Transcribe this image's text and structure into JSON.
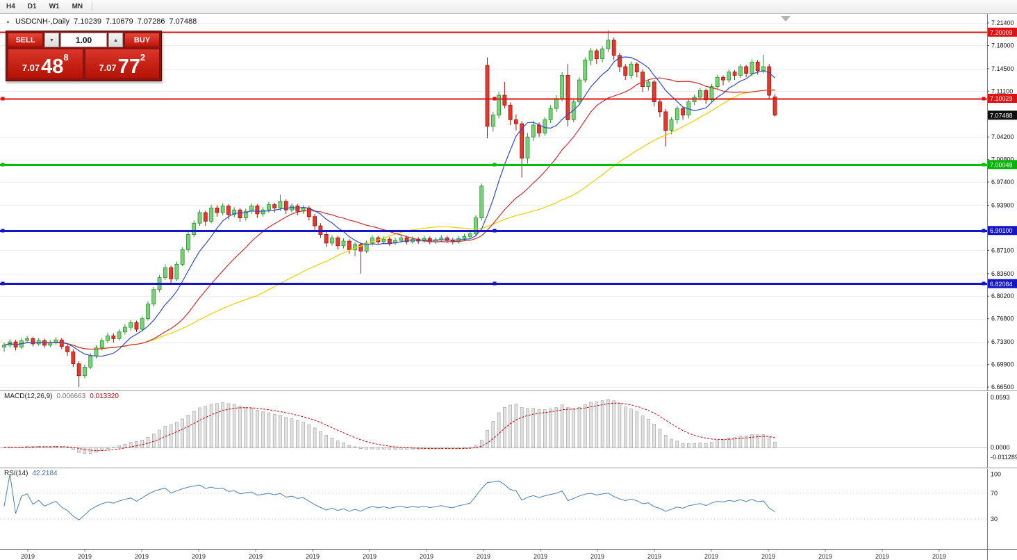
{
  "toolbar": {
    "timeframes": [
      {
        "label": "H4"
      },
      {
        "label": "D1"
      },
      {
        "label": "W1"
      },
      {
        "label": "MN"
      }
    ]
  },
  "header": {
    "symbol": "USDCNH-,Daily",
    "open": "7.10239",
    "high": "7.10679",
    "low": "7.07286",
    "close": "7.07488"
  },
  "trade_panel": {
    "sell_label": "SELL",
    "buy_label": "BUY",
    "volume": "1.00",
    "sell_price": {
      "base": "7.07",
      "big": "48",
      "sup": "8"
    },
    "buy_price": {
      "base": "7.07",
      "big": "77",
      "sup": "2"
    }
  },
  "indicators": {
    "macd": {
      "label": "MACD(12,26,9)",
      "value1": "0.006663",
      "value2": "0.013320",
      "axis_labels": [
        "0.0593",
        "0.0000",
        "-0.011289"
      ]
    },
    "rsi": {
      "label": "RSI(14)",
      "value": "42.2184",
      "axis_labels": [
        {
          "text": "100",
          "value": 100
        },
        {
          "text": "70",
          "value": 70
        },
        {
          "text": "30",
          "value": 30
        }
      ]
    }
  },
  "price_axis": {
    "labels": [
      "7.21400",
      "7.18000",
      "7.14500",
      "7.11100",
      "7.04200",
      "7.00800",
      "6.97400",
      "6.93900",
      "6.87100",
      "6.83600",
      "6.80200",
      "6.76800",
      "6.73300",
      "6.69900",
      "6.66500"
    ],
    "badges": [
      {
        "text": "7.20009",
        "color": "#e01010"
      },
      {
        "text": "7.10029",
        "color": "#e01010"
      },
      {
        "text": "7.07488",
        "color": "#101010"
      },
      {
        "text": "7.00048",
        "color": "#00b400"
      },
      {
        "text": "6.90100",
        "color": "#1414c8"
      },
      {
        "text": "6.82084",
        "color": "#1414c8"
      }
    ]
  },
  "hlines": [
    {
      "price": 7.20009,
      "color": "#e01010",
      "width": 2,
      "handles": false
    },
    {
      "price": 7.10029,
      "color": "#e01010",
      "width": 2,
      "handles": true
    },
    {
      "price": 7.00048,
      "color": "#00c000",
      "width": 3,
      "handles": true
    },
    {
      "price": 6.901,
      "color": "#1414c8",
      "width": 3,
      "handles": true
    },
    {
      "price": 6.82084,
      "color": "#1414c8",
      "width": 3,
      "handles": true
    }
  ],
  "time_axis": {
    "labels": [
      "2019",
      "2019",
      "2019",
      "2019",
      "2019",
      "2019",
      "2019",
      "2019",
      "2019",
      "2019",
      "2019",
      "2019",
      "2019",
      "2019",
      "2019",
      "2019",
      "2019"
    ]
  },
  "colors": {
    "bull": "#7ed07e",
    "bull_border": "#259325",
    "bear": "#e6392d",
    "bear_border": "#a01208",
    "ma_fast": "#2f4cc4",
    "ma_mid": "#cc2f2f",
    "ma_slow": "#e8d40a",
    "grid": "#ededed",
    "macd_hist_fill": "#e2e2e2",
    "macd_hist_stroke": "#9a9a9a",
    "macd_signal": "#cc0000",
    "rsi_line": "#4a7fb5",
    "axis_text": "#111111"
  },
  "chart_data": {
    "type": "candlestick",
    "symbol": "USDCNH",
    "timeframe": "Daily",
    "title": "USDCNH-,Daily",
    "price_range": {
      "top": 7.214,
      "bottom": 6.665
    },
    "overlays": {
      "sma_fast_period": 8,
      "sma_mid_period": 20,
      "sma_slow_period": 45
    },
    "macd_params": {
      "fast": 12,
      "slow": 26,
      "signal": 9
    },
    "rsi_params": {
      "period": 14
    },
    "candles": [
      [
        6.725,
        6.732,
        6.718,
        6.728
      ],
      [
        6.728,
        6.737,
        6.724,
        6.733
      ],
      [
        6.733,
        6.736,
        6.72,
        6.725
      ],
      [
        6.725,
        6.739,
        6.722,
        6.735
      ],
      [
        6.735,
        6.742,
        6.731,
        6.738
      ],
      [
        6.738,
        6.741,
        6.726,
        6.73
      ],
      [
        6.73,
        6.739,
        6.727,
        6.735
      ],
      [
        6.735,
        6.738,
        6.724,
        6.728
      ],
      [
        6.728,
        6.736,
        6.725,
        6.732
      ],
      [
        6.732,
        6.74,
        6.729,
        6.736
      ],
      [
        6.736,
        6.739,
        6.722,
        6.726
      ],
      [
        6.726,
        6.73,
        6.712,
        6.718
      ],
      [
        6.718,
        6.722,
        6.695,
        6.7
      ],
      [
        6.7,
        6.704,
        6.665,
        6.682
      ],
      [
        6.682,
        6.699,
        6.678,
        6.695
      ],
      [
        6.695,
        6.716,
        6.692,
        6.712
      ],
      [
        6.712,
        6.728,
        6.708,
        6.724
      ],
      [
        6.724,
        6.739,
        6.72,
        6.735
      ],
      [
        6.735,
        6.747,
        6.731,
        6.742
      ],
      [
        6.742,
        6.746,
        6.732,
        6.738
      ],
      [
        6.738,
        6.752,
        6.735,
        6.748
      ],
      [
        6.748,
        6.76,
        6.744,
        6.755
      ],
      [
        6.755,
        6.766,
        6.75,
        6.762
      ],
      [
        6.762,
        6.765,
        6.748,
        6.752
      ],
      [
        6.752,
        6.772,
        6.749,
        6.768
      ],
      [
        6.768,
        6.794,
        6.765,
        6.79
      ],
      [
        6.79,
        6.816,
        6.786,
        6.812
      ],
      [
        6.812,
        6.834,
        6.808,
        6.83
      ],
      [
        6.83,
        6.85,
        6.826,
        6.845
      ],
      [
        6.845,
        6.848,
        6.822,
        6.828
      ],
      [
        6.828,
        6.854,
        6.825,
        6.85
      ],
      [
        6.85,
        6.876,
        6.847,
        6.872
      ],
      [
        6.872,
        6.899,
        6.868,
        6.895
      ],
      [
        6.895,
        6.916,
        6.891,
        6.912
      ],
      [
        6.912,
        6.932,
        6.908,
        6.928
      ],
      [
        6.928,
        6.931,
        6.908,
        6.915
      ],
      [
        6.915,
        6.94,
        6.912,
        6.935
      ],
      [
        6.935,
        6.939,
        6.922,
        6.928
      ],
      [
        6.928,
        6.942,
        6.924,
        6.938
      ],
      [
        6.938,
        6.941,
        6.918,
        6.925
      ],
      [
        6.925,
        6.936,
        6.921,
        6.932
      ],
      [
        6.932,
        6.935,
        6.914,
        6.92
      ],
      [
        6.92,
        6.934,
        6.916,
        6.93
      ],
      [
        6.93,
        6.942,
        6.926,
        6.938
      ],
      [
        6.938,
        6.941,
        6.92,
        6.926
      ],
      [
        6.926,
        6.936,
        6.922,
        6.932
      ],
      [
        6.932,
        6.944,
        6.928,
        6.94
      ],
      [
        6.94,
        6.943,
        6.928,
        6.935
      ],
      [
        6.935,
        6.955,
        6.931,
        6.945
      ],
      [
        6.945,
        6.948,
        6.926,
        6.932
      ],
      [
        6.932,
        6.942,
        6.928,
        6.938
      ],
      [
        6.938,
        6.941,
        6.924,
        6.93
      ],
      [
        6.93,
        6.939,
        6.926,
        6.935
      ],
      [
        6.935,
        6.938,
        6.916,
        6.922
      ],
      [
        6.922,
        6.926,
        6.902,
        6.908
      ],
      [
        6.908,
        6.912,
        6.89,
        6.895
      ],
      [
        6.895,
        6.899,
        6.876,
        6.882
      ],
      [
        6.882,
        6.894,
        6.878,
        6.89
      ],
      [
        6.89,
        6.893,
        6.872,
        6.878
      ],
      [
        6.878,
        6.889,
        6.874,
        6.885
      ],
      [
        6.885,
        6.888,
        6.866,
        6.872
      ],
      [
        6.872,
        6.884,
        6.862,
        6.88
      ],
      [
        6.88,
        6.883,
        6.836,
        6.87
      ],
      [
        6.87,
        6.886,
        6.867,
        6.882
      ],
      [
        6.882,
        6.894,
        6.878,
        6.89
      ],
      [
        6.89,
        6.893,
        6.88,
        6.884
      ],
      [
        6.884,
        6.892,
        6.881,
        6.888
      ],
      [
        6.888,
        6.891,
        6.878,
        6.882
      ],
      [
        6.882,
        6.89,
        6.879,
        6.886
      ],
      [
        6.886,
        6.894,
        6.883,
        6.89
      ],
      [
        6.89,
        6.893,
        6.88,
        6.884
      ],
      [
        6.884,
        6.892,
        6.881,
        6.888
      ],
      [
        6.888,
        6.891,
        6.881,
        6.885
      ],
      [
        6.885,
        6.893,
        6.882,
        6.889
      ],
      [
        6.889,
        6.892,
        6.88,
        6.884
      ],
      [
        6.884,
        6.891,
        6.881,
        6.887
      ],
      [
        6.887,
        6.894,
        6.884,
        6.89
      ],
      [
        6.89,
        6.893,
        6.882,
        6.886
      ],
      [
        6.886,
        6.89,
        6.88,
        6.884
      ],
      [
        6.884,
        6.893,
        6.881,
        6.889
      ],
      [
        6.889,
        6.896,
        6.886,
        6.892
      ],
      [
        6.892,
        6.9,
        6.889,
        6.896
      ],
      [
        6.896,
        6.924,
        6.893,
        6.92
      ],
      [
        6.92,
        6.972,
        6.916,
        6.968
      ],
      [
        7.15,
        7.162,
        7.04,
        7.058
      ],
      [
        7.058,
        7.08,
        7.05,
        7.075
      ],
      [
        7.075,
        7.11,
        7.07,
        7.105
      ],
      [
        7.105,
        7.125,
        7.085,
        7.09
      ],
      [
        7.09,
        7.094,
        7.06,
        7.068
      ],
      [
        7.068,
        7.076,
        7.052,
        7.062
      ],
      [
        7.062,
        7.066,
        6.981,
        7.01
      ],
      [
        7.01,
        7.048,
        7.002,
        7.042
      ],
      [
        7.042,
        7.066,
        7.036,
        7.06
      ],
      [
        7.06,
        7.064,
        7.042,
        7.048
      ],
      [
        7.048,
        7.072,
        7.044,
        7.068
      ],
      [
        7.068,
        7.09,
        7.063,
        7.085
      ],
      [
        7.085,
        7.105,
        7.08,
        7.1
      ],
      [
        7.1,
        7.14,
        7.096,
        7.135
      ],
      [
        7.135,
        7.152,
        7.058,
        7.068
      ],
      [
        7.068,
        7.099,
        7.064,
        7.095
      ],
      [
        7.095,
        7.132,
        7.091,
        7.128
      ],
      [
        7.128,
        7.162,
        7.124,
        7.158
      ],
      [
        7.158,
        7.176,
        7.15,
        7.172
      ],
      [
        7.172,
        7.175,
        7.152,
        7.16
      ],
      [
        7.16,
        7.179,
        7.155,
        7.175
      ],
      [
        7.175,
        7.203,
        7.17,
        7.188
      ],
      [
        7.188,
        7.192,
        7.158,
        7.165
      ],
      [
        7.165,
        7.169,
        7.14,
        7.148
      ],
      [
        7.148,
        7.152,
        7.128,
        7.135
      ],
      [
        7.135,
        7.156,
        7.13,
        7.152
      ],
      [
        7.152,
        7.155,
        7.132,
        7.14
      ],
      [
        7.14,
        7.144,
        7.11,
        7.118
      ],
      [
        7.118,
        7.129,
        7.112,
        7.125
      ],
      [
        7.125,
        7.128,
        7.088,
        7.095
      ],
      [
        7.095,
        7.099,
        7.072,
        7.08
      ],
      [
        7.08,
        7.084,
        7.028,
        7.052
      ],
      [
        7.052,
        7.072,
        7.046,
        7.068
      ],
      [
        7.068,
        7.089,
        7.062,
        7.085
      ],
      [
        7.085,
        7.088,
        7.068,
        7.075
      ],
      [
        7.075,
        7.099,
        7.07,
        7.095
      ],
      [
        7.095,
        7.106,
        7.09,
        7.102
      ],
      [
        7.102,
        7.116,
        7.097,
        7.112
      ],
      [
        7.112,
        7.115,
        7.092,
        7.098
      ],
      [
        7.098,
        7.122,
        7.094,
        7.118
      ],
      [
        7.118,
        7.136,
        7.114,
        7.132
      ],
      [
        7.132,
        7.135,
        7.12,
        7.128
      ],
      [
        7.128,
        7.144,
        7.124,
        7.14
      ],
      [
        7.14,
        7.143,
        7.128,
        7.135
      ],
      [
        7.135,
        7.152,
        7.131,
        7.148
      ],
      [
        7.148,
        7.151,
        7.132,
        7.138
      ],
      [
        7.138,
        7.159,
        7.134,
        7.155
      ],
      [
        7.155,
        7.158,
        7.136,
        7.142
      ],
      [
        7.142,
        7.166,
        7.138,
        7.148
      ],
      [
        7.148,
        7.152,
        7.1,
        7.105
      ],
      [
        7.10239,
        7.10679,
        7.07286,
        7.07488
      ]
    ]
  }
}
